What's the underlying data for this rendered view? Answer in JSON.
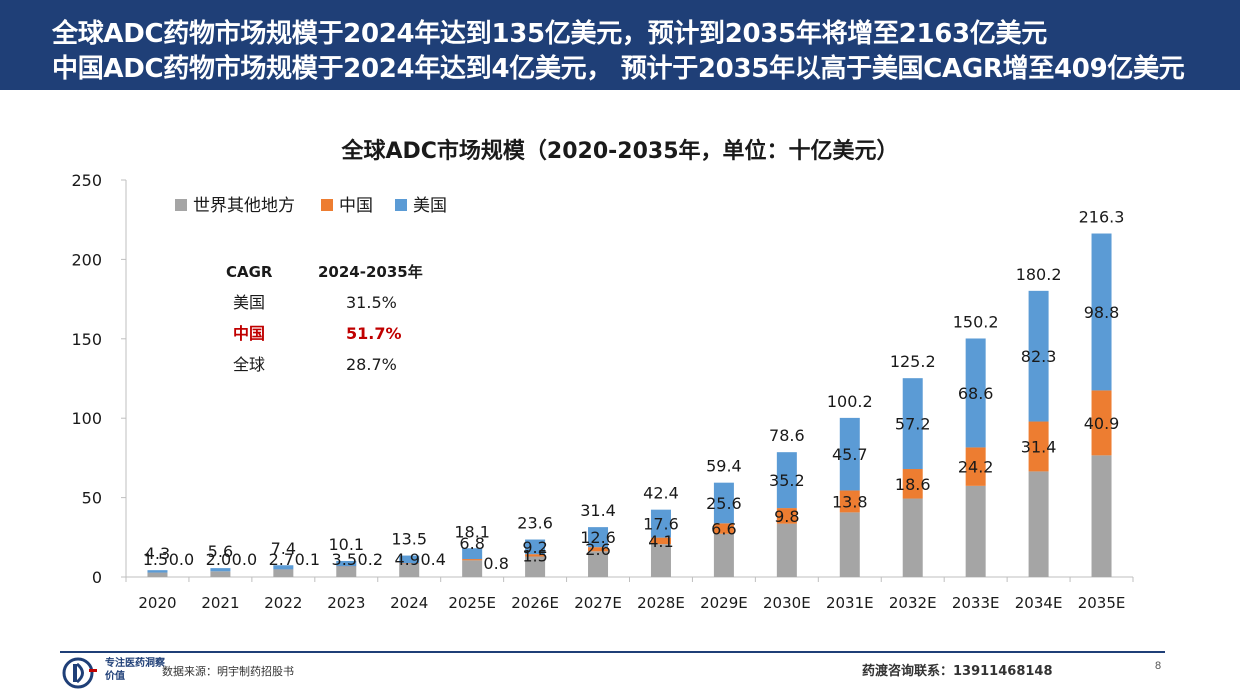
{
  "header": {
    "line1": "全球ADC药物市场规模于2024年达到135亿美元，预计到2035年将增至2163亿美元",
    "line2": "中国ADC药物市场规模于2024年达到4亿美元， 预计于2035年以高于美国CAGR增至409亿美元",
    "background_color": "#1f3f77"
  },
  "chart_data": {
    "type": "bar",
    "stacked": true,
    "title": "全球ADC市场规模（2020-2035年，单位：十亿美元）",
    "categories": [
      "2020",
      "2021",
      "2022",
      "2023",
      "2024",
      "2025E",
      "2026E",
      "2027E",
      "2028E",
      "2029E",
      "2030E",
      "2031E",
      "2032E",
      "2033E",
      "2034E",
      "2035E"
    ],
    "series": [
      {
        "name": "世界其他地方",
        "color": "#a5a5a5",
        "values": [
          2.8,
          3.6,
          4.6,
          6.4,
          8.2,
          10.5,
          12.9,
          16.2,
          20.7,
          27.2,
          33.6,
          40.7,
          49.4,
          57.4,
          66.5,
          76.6
        ]
      },
      {
        "name": "中国",
        "color": "#ed7d31",
        "values": [
          0.0,
          0.0,
          0.1,
          0.2,
          0.4,
          0.8,
          1.5,
          2.6,
          4.1,
          6.6,
          9.8,
          13.8,
          18.6,
          24.2,
          31.4,
          40.9
        ]
      },
      {
        "name": "美国",
        "color": "#5b9bd5",
        "values": [
          1.5,
          2.0,
          2.7,
          3.5,
          4.9,
          6.8,
          9.2,
          12.6,
          17.6,
          25.6,
          35.2,
          45.7,
          57.2,
          68.6,
          82.3,
          98.8
        ]
      }
    ],
    "totals": [
      4.3,
      5.6,
      7.4,
      10.1,
      13.5,
      18.1,
      23.6,
      31.4,
      42.4,
      59.4,
      78.6,
      100.2,
      125.2,
      150.2,
      180.2,
      216.3
    ],
    "label_labels": {
      "中国": [
        "0.0",
        "0.0",
        "0.1",
        "0.2",
        "0.4",
        "0.8",
        "1.5",
        "2.6",
        "4.1",
        "6.6",
        "9.8",
        "13.8",
        "18.6",
        "24.2",
        "31.4",
        "40.9"
      ],
      "美国": [
        "1.5",
        "2.0",
        "2.7",
        "3.5",
        "4.9",
        "6.8",
        "9.2",
        "12.6",
        "17.6",
        "25.6",
        "35.2",
        "45.7",
        "57.2",
        "68.6",
        "82.3",
        "98.8"
      ]
    },
    "ylim": [
      0,
      250
    ],
    "yticks": [
      0,
      50,
      100,
      150,
      200,
      250
    ],
    "legend_position": "top-left",
    "cagr_table": {
      "header": [
        "CAGR",
        "2024-2035年"
      ],
      "rows": [
        {
          "label": "美国",
          "value": "31.5%",
          "highlight": false
        },
        {
          "label": "中国",
          "value": "51.7%",
          "highlight": true
        },
        {
          "label": "全球",
          "value": "28.7%",
          "highlight": false
        }
      ],
      "highlight_color": "#c00000"
    }
  },
  "footer": {
    "slogan": "专注医药洞察价值",
    "source": "数据来源：明宇制药招股书",
    "contact": "药渡咨询联系：13911468148",
    "page_number": "8"
  }
}
